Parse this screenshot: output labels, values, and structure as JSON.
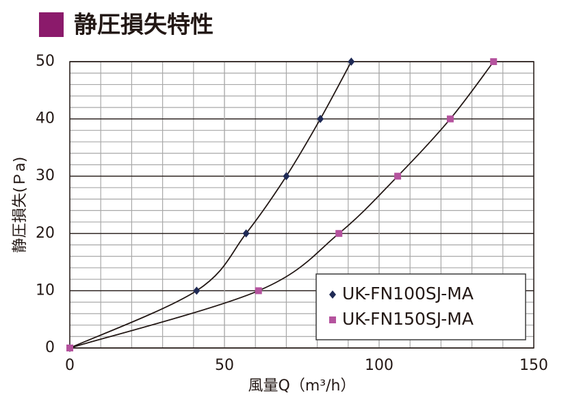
{
  "chart_data": {
    "type": "line",
    "title": "静圧損失特性",
    "x_label": "風量Q（m³/h）",
    "y_label": "静圧損失(Ｐa)",
    "xlim": [
      0,
      150
    ],
    "xticks": [
      0,
      50,
      100,
      150
    ],
    "ylim": [
      0,
      50
    ],
    "yticks": [
      0,
      10,
      20,
      30,
      40,
      50
    ],
    "grid": true,
    "minor_grid": {
      "x_step": 10,
      "y_step": 2
    },
    "legend": "lower right",
    "line_color": "#231815",
    "series": [
      {
        "name": "UK-FN100SJ-MA",
        "color": "#1f2a55",
        "marker": "diamond",
        "x": [
          0,
          41,
          57,
          70,
          81,
          91
        ],
        "values": [
          0,
          10,
          20,
          30,
          40,
          50
        ]
      },
      {
        "name": "UK-FN150SJ-MA",
        "color": "#b5539e",
        "marker": "square",
        "x": [
          0,
          61,
          87,
          106,
          123,
          137
        ],
        "values": [
          0,
          10,
          20,
          30,
          40,
          50
        ]
      }
    ]
  }
}
